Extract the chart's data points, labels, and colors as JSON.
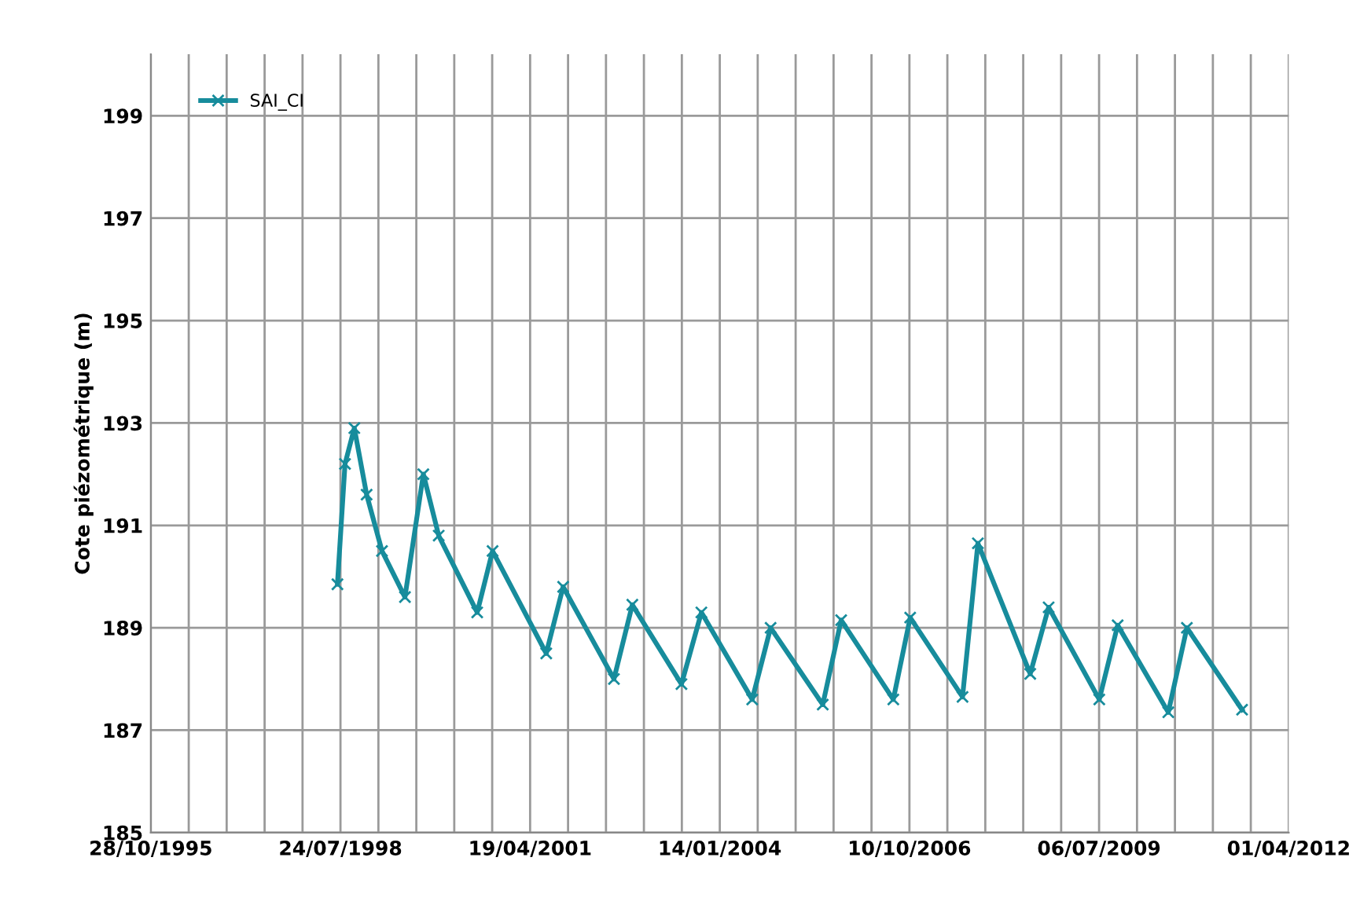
{
  "chart_data": {
    "type": "line",
    "ylabel": "Cote piézométrique (m)",
    "xlim": [
      "1995-10-28",
      "2012-04-01"
    ],
    "ylim": [
      185,
      200.2
    ],
    "yticks": [
      185,
      187,
      189,
      191,
      193,
      195,
      197,
      199
    ],
    "xticks": [
      {
        "value": "1995-10-28",
        "label": "28/10/1995"
      },
      {
        "value": "1996-05-15",
        "label": null
      },
      {
        "value": "1996-12-01",
        "label": null
      },
      {
        "value": "1997-06-19",
        "label": null
      },
      {
        "value": "1998-01-05",
        "label": null
      },
      {
        "value": "1998-07-24",
        "label": "24/07/1998"
      },
      {
        "value": "1999-02-09",
        "label": null
      },
      {
        "value": "1999-08-28",
        "label": null
      },
      {
        "value": "2000-03-15",
        "label": null
      },
      {
        "value": "2000-10-01",
        "label": null
      },
      {
        "value": "2001-04-19",
        "label": "19/04/2001"
      },
      {
        "value": "2001-11-05",
        "label": null
      },
      {
        "value": "2002-05-24",
        "label": null
      },
      {
        "value": "2002-12-10",
        "label": null
      },
      {
        "value": "2003-06-28",
        "label": null
      },
      {
        "value": "2004-01-14",
        "label": "14/01/2004"
      },
      {
        "value": "2004-08-01",
        "label": null
      },
      {
        "value": "2005-02-17",
        "label": null
      },
      {
        "value": "2005-09-05",
        "label": null
      },
      {
        "value": "2006-03-24",
        "label": null
      },
      {
        "value": "2006-10-10",
        "label": "10/10/2006"
      },
      {
        "value": "2007-04-28",
        "label": null
      },
      {
        "value": "2007-11-14",
        "label": null
      },
      {
        "value": "2008-06-01",
        "label": null
      },
      {
        "value": "2008-12-18",
        "label": null
      },
      {
        "value": "2009-07-06",
        "label": "06/07/2009"
      },
      {
        "value": "2010-01-22",
        "label": null
      },
      {
        "value": "2010-08-10",
        "label": null
      },
      {
        "value": "2011-02-26",
        "label": null
      },
      {
        "value": "2011-09-14",
        "label": null
      },
      {
        "value": "2012-04-01",
        "label": "01/04/2012"
      }
    ],
    "grid": true,
    "legend": "top left",
    "marker": "cross",
    "line_style": "solid",
    "series": [
      {
        "name": "SAI_CI",
        "color": "#178c9c",
        "x": [
          "1998-07-08",
          "1998-08-17",
          "1998-10-05",
          "1998-12-09",
          "1999-02-28",
          "1999-06-29",
          "1999-10-04",
          "1999-12-24",
          "2000-07-14",
          "2000-10-03",
          "2001-07-13",
          "2001-10-10",
          "2002-07-05",
          "2002-10-10",
          "2003-06-26",
          "2003-10-09",
          "2004-07-03",
          "2004-10-08",
          "2005-07-10",
          "2005-10-15",
          "2006-07-17",
          "2006-10-14",
          "2007-07-17",
          "2007-10-06",
          "2008-07-08",
          "2008-10-13",
          "2009-07-07",
          "2009-10-12",
          "2010-07-06",
          "2010-10-12",
          "2011-07-30"
        ],
        "values": [
          189.85,
          192.2,
          192.9,
          191.6,
          190.5,
          189.6,
          192.0,
          190.8,
          189.3,
          190.5,
          188.5,
          189.8,
          188.0,
          189.45,
          187.9,
          189.3,
          187.6,
          189.0,
          187.5,
          189.15,
          187.6,
          189.2,
          187.65,
          190.65,
          188.1,
          189.4,
          187.6,
          189.05,
          187.35,
          189.0,
          187.4
        ]
      }
    ]
  }
}
